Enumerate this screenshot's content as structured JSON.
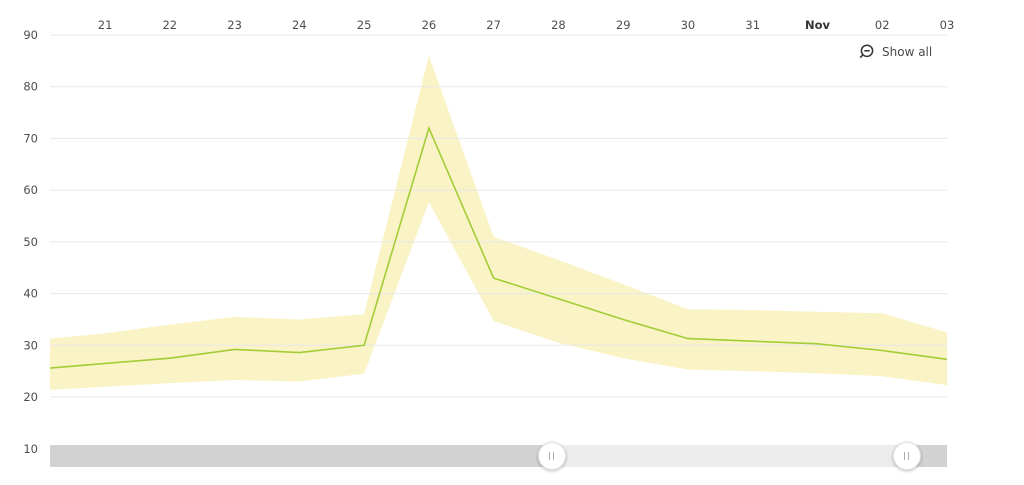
{
  "controls": {
    "show_all_label": "Show all"
  },
  "scrollbar": {
    "range_start_pct": 55.96,
    "range_end_pct": 95.54
  },
  "chart_data": {
    "type": "line",
    "title": "",
    "xlabel": "",
    "ylabel": "",
    "x_axis_position": "top",
    "legend_position": "none",
    "grid": "horizontal",
    "x_domain": [
      20.15,
      34
    ],
    "y_domain": [
      10,
      90
    ],
    "x": [
      20.15,
      21,
      22,
      23,
      24,
      25,
      26,
      27,
      28,
      29,
      30,
      31,
      32,
      33,
      34
    ],
    "x_ticks": [
      {
        "x": 21,
        "label": "21",
        "bold": false
      },
      {
        "x": 22,
        "label": "22",
        "bold": false
      },
      {
        "x": 23,
        "label": "23",
        "bold": false
      },
      {
        "x": 24,
        "label": "24",
        "bold": false
      },
      {
        "x": 25,
        "label": "25",
        "bold": false
      },
      {
        "x": 26,
        "label": "26",
        "bold": false
      },
      {
        "x": 27,
        "label": "27",
        "bold": false
      },
      {
        "x": 28,
        "label": "28",
        "bold": false
      },
      {
        "x": 29,
        "label": "29",
        "bold": false
      },
      {
        "x": 30,
        "label": "30",
        "bold": false
      },
      {
        "x": 31,
        "label": "31",
        "bold": false
      },
      {
        "x": 32,
        "label": "Nov",
        "bold": true
      },
      {
        "x": 33,
        "label": "02",
        "bold": false
      },
      {
        "x": 34,
        "label": "03",
        "bold": false
      }
    ],
    "y_ticks": [
      {
        "v": 90,
        "label": "90",
        "grid": true
      },
      {
        "v": 80,
        "label": "80",
        "grid": true
      },
      {
        "v": 70,
        "label": "70",
        "grid": true
      },
      {
        "v": 60,
        "label": "60",
        "grid": true
      },
      {
        "v": 50,
        "label": "50",
        "grid": true
      },
      {
        "v": 40,
        "label": "40",
        "grid": true
      },
      {
        "v": 30,
        "label": "30",
        "grid": true
      },
      {
        "v": 20,
        "label": "20",
        "grid": true
      },
      {
        "v": 10,
        "label": "10",
        "grid": false
      }
    ],
    "series": [
      {
        "name": "value",
        "values": [
          25.6,
          26.5,
          27.5,
          29.2,
          28.6,
          30,
          72,
          43,
          39,
          35,
          31.3,
          30.8,
          30.3,
          29,
          27.3
        ]
      },
      {
        "name": "range-upper",
        "values": [
          31.3,
          32.3,
          34,
          35.5,
          35,
          36,
          86,
          51,
          46.5,
          41.8,
          37,
          36.8,
          36.5,
          36.2,
          32.5
        ]
      },
      {
        "name": "range-lower",
        "values": [
          21.4,
          22,
          22.7,
          23.3,
          23,
          24.5,
          57.7,
          34.7,
          30.5,
          27.5,
          25.3,
          25,
          24.6,
          24,
          22.3
        ]
      }
    ],
    "line_color": "#a3cd36",
    "band_color": "#faf3c6",
    "grid_color": "#e8e8e8"
  }
}
